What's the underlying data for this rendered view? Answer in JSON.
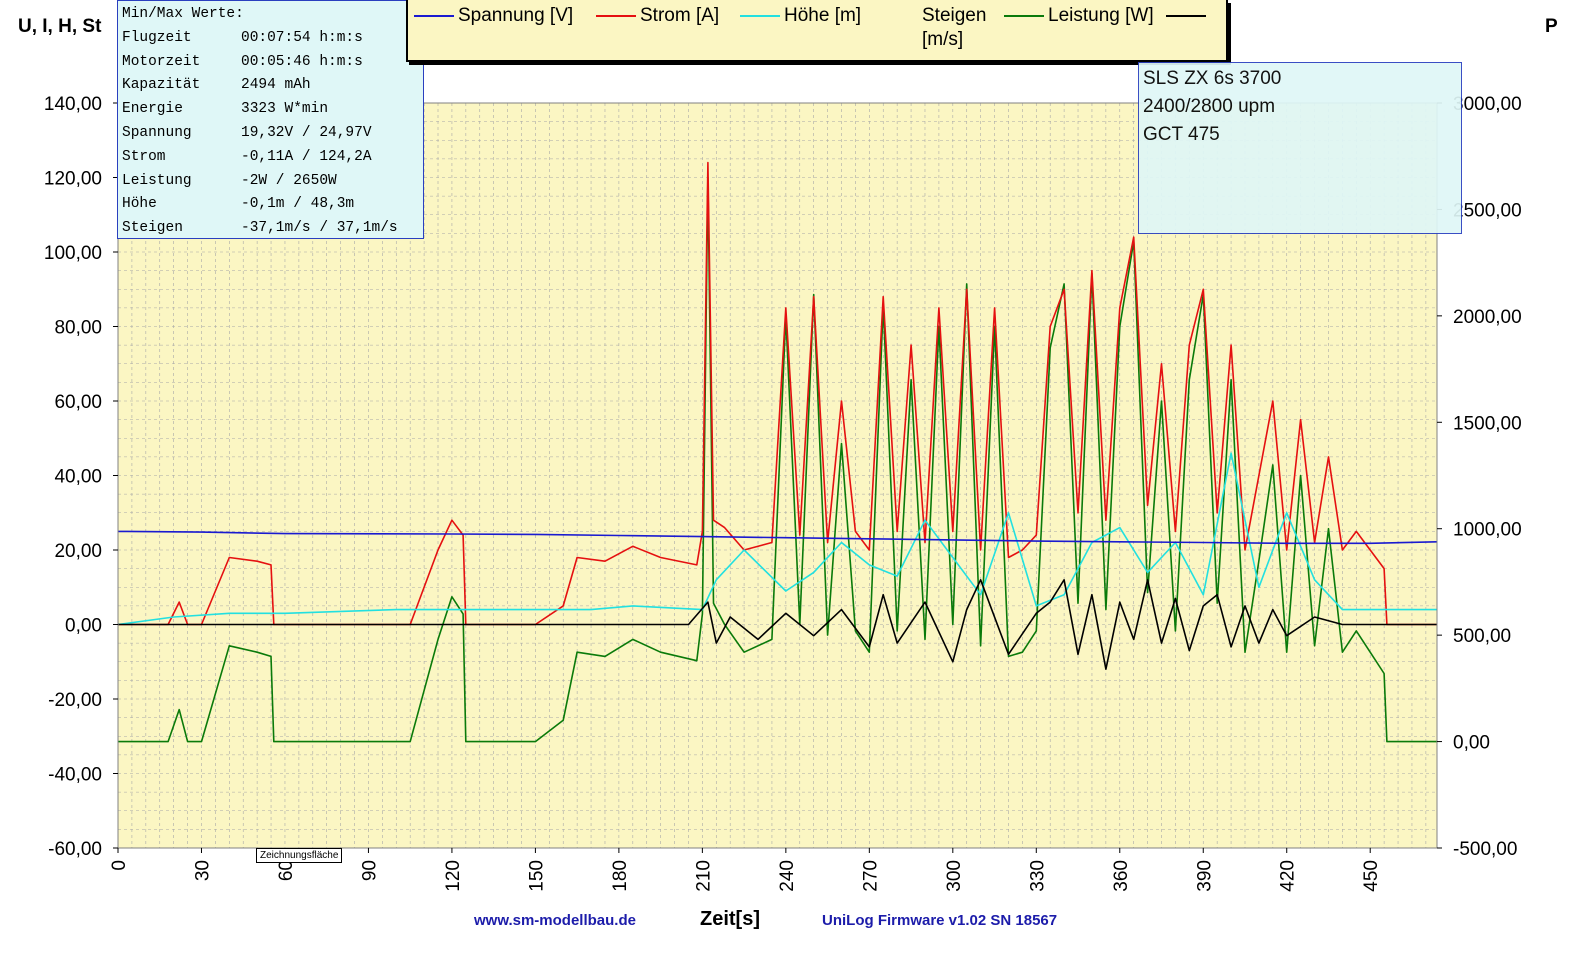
{
  "left_axis_title": "U, I, H, St",
  "right_axis_title": "P",
  "stats": {
    "title": "Min/Max Werte:",
    "rows": [
      {
        "label": "Flugzeit",
        "value": "00:07:54 h:m:s"
      },
      {
        "label": "Motorzeit",
        "value": "00:05:46 h:m:s"
      },
      {
        "label": "Kapazität",
        "value": "2494 mAh"
      },
      {
        "label": "Energie",
        "value": "3323 W*min"
      },
      {
        "label": "Spannung",
        "value": "19,32V / 24,97V"
      },
      {
        "label": "Strom",
        "value": "-0,11A / 124,2A"
      },
      {
        "label": "Leistung",
        "value": "-2W / 2650W"
      },
      {
        "label": "Höhe",
        "value": "-0,1m / 48,3m"
      },
      {
        "label": "Steigen",
        "value": "-37,1m/s / 37,1m/s"
      }
    ]
  },
  "legend": [
    {
      "label": "Spannung [V]",
      "color": "#1a1ad0"
    },
    {
      "label": "Strom [A]",
      "color": "#e51010"
    },
    {
      "label": "Höhe [m]",
      "color": "#22e0e0"
    },
    {
      "label": "Steigen [m/s]",
      "color": "#000000"
    },
    {
      "label": "Leistung [W]",
      "color": "#0a7a0a"
    }
  ],
  "info_lines": [
    "SLS ZX 6s 3700",
    "2400/2800 upm",
    "GCT 475"
  ],
  "footer": {
    "website": "www.sm-modellbau.de",
    "x_axis_label": "Zeit[s]",
    "firmware": "UniLog Firmware v1.02 SN 18567"
  },
  "tooltip": "Zeichnungsfläche",
  "colors": {
    "plot_bg": "#fbf6c3",
    "box_bg": "#dff7f7"
  },
  "chart_data": {
    "type": "line",
    "xlabel": "Zeit[s]",
    "xlim": [
      0,
      474
    ],
    "x_ticks": [
      "0",
      "30",
      "60",
      "90",
      "120",
      "150",
      "180",
      "210",
      "240",
      "270",
      "300",
      "330",
      "360",
      "390",
      "420",
      "450"
    ],
    "ylim_left": [
      -60,
      140
    ],
    "y_ticks_left": [
      "140,00",
      "120,00",
      "100,00",
      "80,00",
      "60,00",
      "40,00",
      "20,00",
      "0,00",
      "-20,00",
      "-40,00",
      "-60,00"
    ],
    "ylim_right": [
      -500,
      3000
    ],
    "y_ticks_right": [
      "3000,00",
      "2500,00",
      "2000,00",
      "1500,00",
      "1000,00",
      "500,00",
      "0,00",
      "-500,00"
    ],
    "grid": true,
    "series": [
      {
        "name": "Spannung [V]",
        "axis": "left",
        "color": "#1a1ad0",
        "x": [
          0,
          30,
          60,
          120,
          150,
          180,
          210,
          240,
          270,
          300,
          330,
          360,
          390,
          420,
          450,
          474
        ],
        "y": [
          25,
          24.8,
          24.4,
          24.3,
          24.2,
          23.9,
          23.6,
          23.3,
          23,
          22.7,
          22.4,
          22.2,
          22,
          21.8,
          21.8,
          22.2
        ]
      },
      {
        "name": "Strom [A]",
        "axis": "left",
        "color": "#e51010",
        "x": [
          0,
          18,
          22,
          25,
          30,
          40,
          50,
          55,
          56,
          60,
          105,
          115,
          120,
          124,
          125,
          130,
          150,
          160,
          165,
          175,
          185,
          195,
          208,
          210,
          212,
          214,
          218,
          225,
          235,
          240,
          245,
          250,
          255,
          260,
          265,
          270,
          275,
          280,
          285,
          290,
          295,
          300,
          305,
          310,
          315,
          320,
          325,
          330,
          335,
          340,
          345,
          350,
          355,
          360,
          365,
          370,
          375,
          380,
          385,
          390,
          395,
          400,
          405,
          410,
          415,
          420,
          425,
          430,
          435,
          440,
          445,
          450,
          455,
          456,
          474
        ],
        "y": [
          0,
          0,
          6,
          0,
          0,
          18,
          17,
          16,
          0,
          0,
          0,
          20,
          28,
          24,
          0,
          0,
          0,
          5,
          18,
          17,
          21,
          18,
          16,
          25,
          124,
          28,
          26,
          20,
          22,
          85,
          24,
          88,
          22,
          60,
          25,
          20,
          88,
          25,
          75,
          22,
          85,
          25,
          90,
          20,
          85,
          18,
          20,
          24,
          80,
          90,
          30,
          95,
          28,
          85,
          104,
          32,
          70,
          25,
          75,
          90,
          30,
          75,
          20,
          40,
          60,
          20,
          55,
          22,
          45,
          20,
          25,
          20,
          15,
          0,
          0
        ]
      },
      {
        "name": "Höhe [m]",
        "axis": "left",
        "color": "#22e0e0",
        "x": [
          0,
          20,
          40,
          60,
          100,
          130,
          170,
          185,
          210,
          215,
          225,
          240,
          250,
          260,
          270,
          280,
          290,
          300,
          310,
          320,
          330,
          340,
          350,
          360,
          370,
          380,
          390,
          400,
          410,
          420,
          430,
          440,
          450,
          474
        ],
        "y": [
          0,
          2,
          3,
          3,
          4,
          4,
          4,
          5,
          4,
          12,
          20,
          9,
          14,
          22,
          16,
          13,
          28,
          18,
          8,
          30,
          5,
          8,
          22,
          26,
          14,
          22,
          8,
          46,
          10,
          30,
          12,
          4,
          4,
          4
        ]
      },
      {
        "name": "Steigen [m/s]",
        "axis": "left",
        "color": "#000000",
        "x": [
          0,
          150,
          185,
          205,
          212,
          215,
          220,
          230,
          240,
          250,
          260,
          270,
          275,
          280,
          290,
          300,
          305,
          310,
          320,
          330,
          335,
          340,
          345,
          350,
          355,
          360,
          365,
          370,
          375,
          380,
          385,
          390,
          395,
          400,
          405,
          410,
          415,
          420,
          430,
          440,
          474
        ],
        "y": [
          0,
          0,
          0,
          0,
          6,
          -5,
          2,
          -4,
          3,
          -3,
          4,
          -6,
          8,
          -5,
          6,
          -10,
          4,
          12,
          -8,
          3,
          6,
          12,
          -8,
          8,
          -12,
          6,
          -4,
          12,
          -5,
          7,
          -7,
          5,
          8,
          -6,
          5,
          -5,
          4,
          -3,
          2,
          0,
          0
        ]
      },
      {
        "name": "Leistung [W]",
        "axis": "right",
        "color": "#0a7a0a",
        "x": [
          0,
          18,
          22,
          25,
          30,
          40,
          50,
          55,
          56,
          60,
          105,
          115,
          120,
          124,
          125,
          130,
          150,
          160,
          165,
          175,
          185,
          195,
          208,
          210,
          212,
          214,
          218,
          225,
          235,
          240,
          245,
          250,
          255,
          260,
          265,
          270,
          275,
          280,
          285,
          290,
          295,
          300,
          305,
          310,
          315,
          320,
          325,
          330,
          335,
          340,
          345,
          350,
          355,
          360,
          365,
          370,
          375,
          380,
          385,
          390,
          395,
          400,
          405,
          410,
          415,
          420,
          425,
          430,
          435,
          440,
          445,
          450,
          455,
          456,
          474
        ],
        "y": [
          0,
          0,
          150,
          0,
          0,
          450,
          420,
          400,
          0,
          0,
          0,
          480,
          680,
          600,
          0,
          0,
          0,
          100,
          420,
          400,
          480,
          420,
          380,
          600,
          2650,
          650,
          550,
          420,
          480,
          2000,
          550,
          2100,
          500,
          1400,
          520,
          420,
          2050,
          520,
          1700,
          480,
          1950,
          550,
          2150,
          450,
          1950,
          400,
          420,
          520,
          1850,
          2150,
          650,
          2200,
          620,
          1950,
          2350,
          700,
          1600,
          520,
          1700,
          2100,
          650,
          1700,
          420,
          850,
          1300,
          420,
          1250,
          450,
          1000,
          420,
          520,
          420,
          320,
          0,
          0
        ]
      }
    ]
  }
}
